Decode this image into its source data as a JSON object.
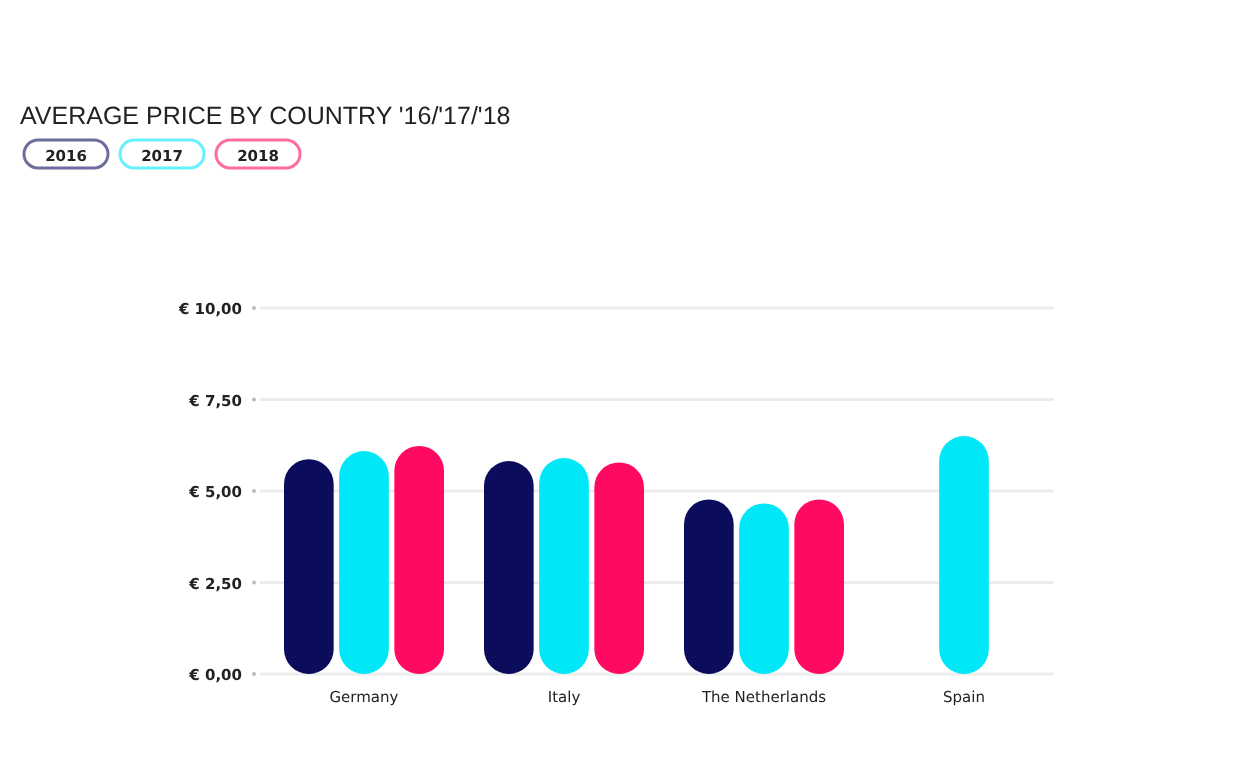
{
  "chart_data": {
    "type": "bar",
    "title": "AVERAGE PRICE BY COUNTRY '16/'17/'18",
    "categories": [
      "Germany",
      "Italy",
      "The Netherlands",
      "Spain"
    ],
    "series": [
      {
        "name": "2016",
        "color": "#0b0d5c",
        "values": [
          5.87,
          5.82,
          4.77,
          null
        ]
      },
      {
        "name": "2017",
        "color": "#00e8f8",
        "values": [
          6.09,
          5.9,
          4.66,
          6.5
        ]
      },
      {
        "name": "2018",
        "color": "#ff0a63",
        "values": [
          6.23,
          5.78,
          4.77,
          null
        ]
      }
    ],
    "ylim": [
      0,
      10
    ],
    "yticks": [
      {
        "value": 0,
        "label": "€ 0,00"
      },
      {
        "value": 2.5,
        "label": "€ 2,50"
      },
      {
        "value": 5,
        "label": "€ 5,00"
      },
      {
        "value": 7.5,
        "label": "€ 7,50"
      },
      {
        "value": 10,
        "label": "€ 10,00"
      }
    ],
    "grid": "y",
    "legend": "top left"
  }
}
